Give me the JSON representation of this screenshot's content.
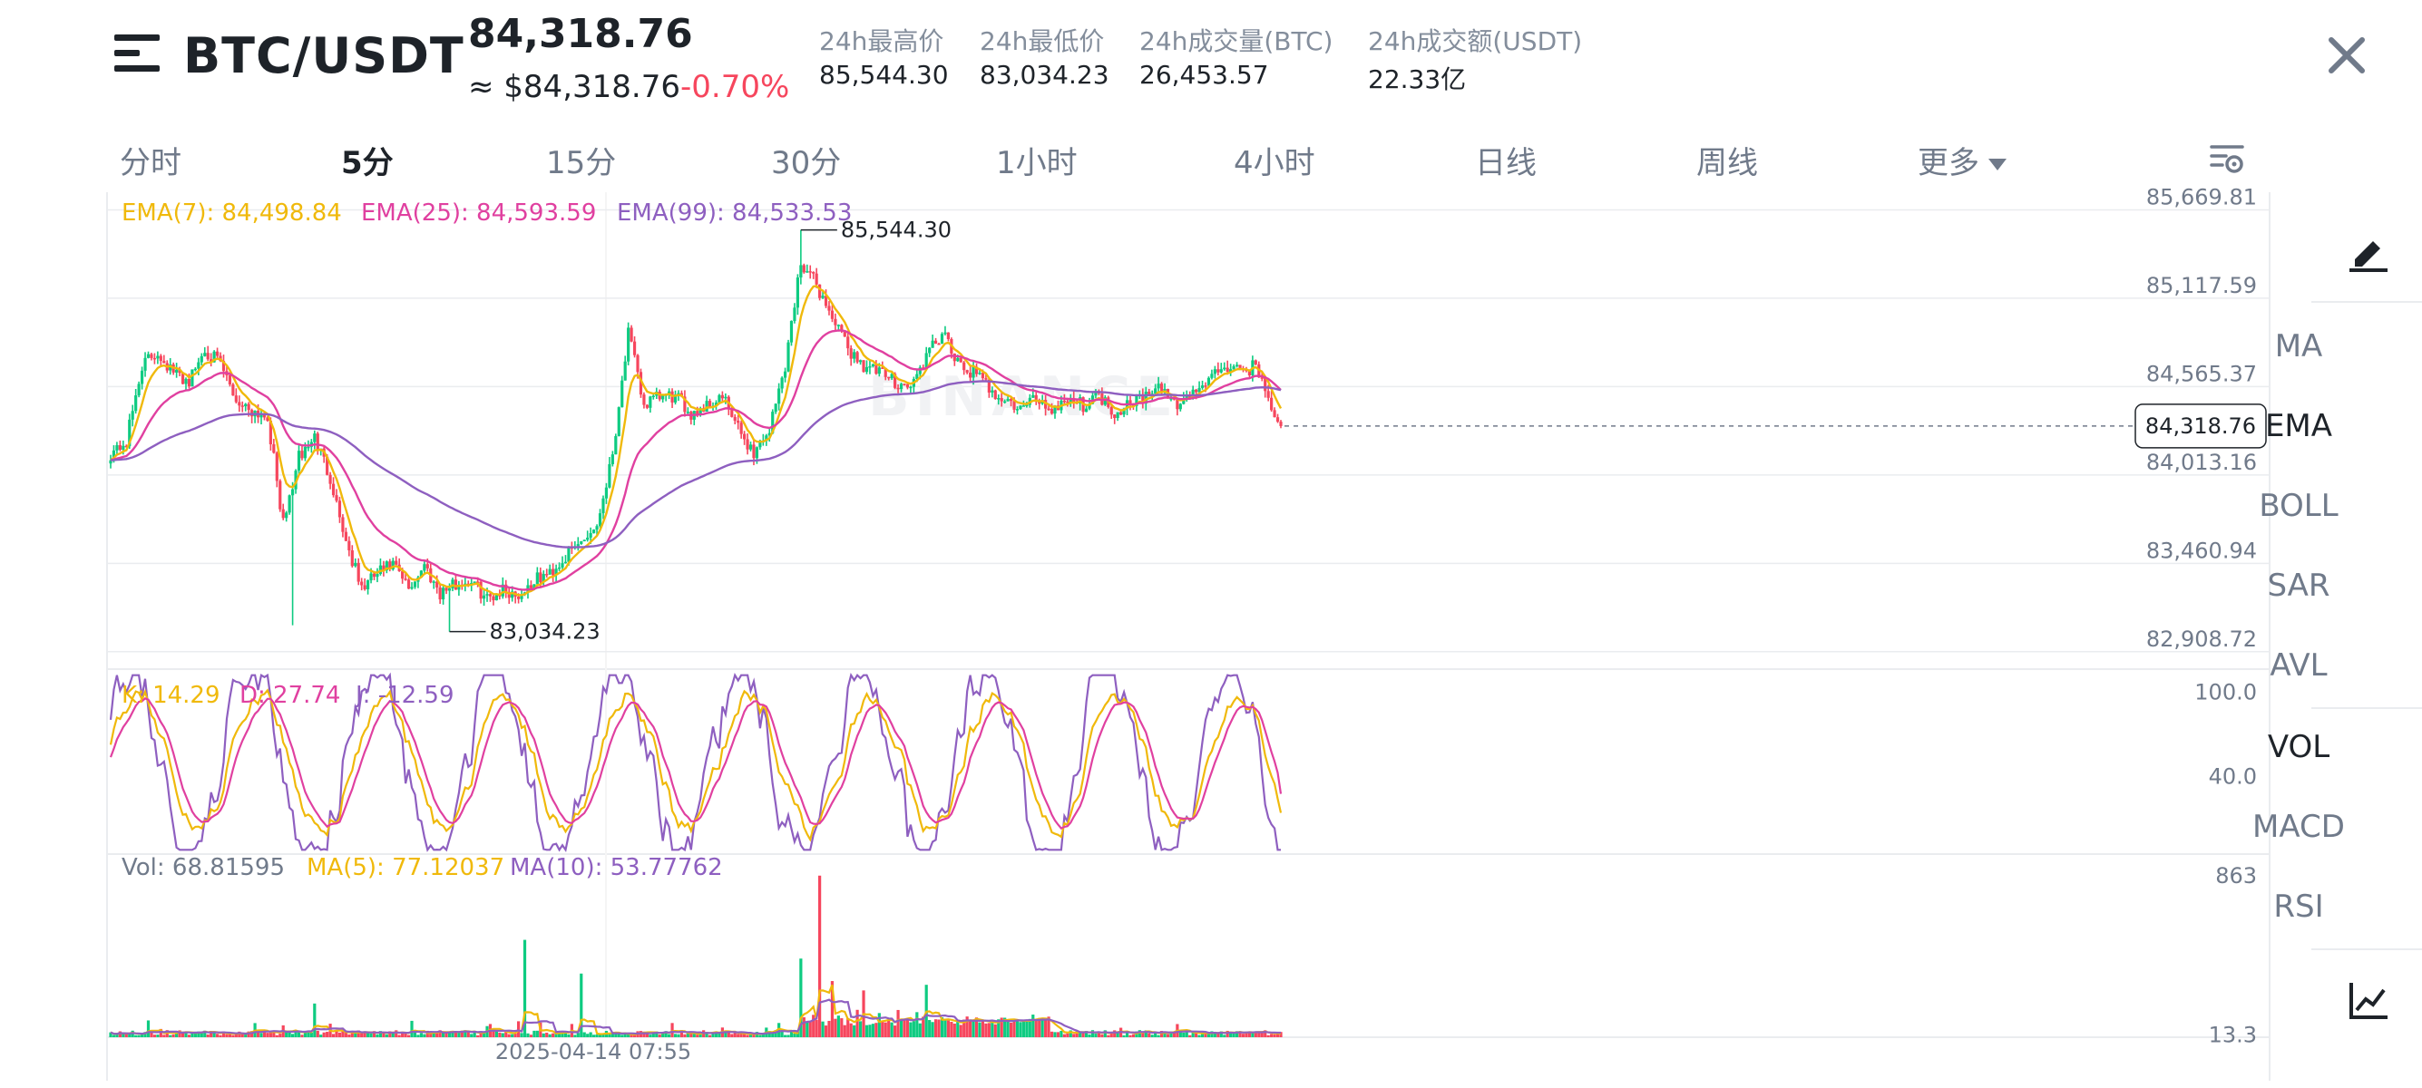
{
  "header": {
    "pair": "BTC/USDT",
    "last_price": "84,318.76",
    "last_price_usd": "≈ $84,318.76",
    "change_pct": "-0.70%",
    "stats": [
      {
        "label": "24h最高价",
        "value": "85,544.30"
      },
      {
        "label": "24h最低价",
        "value": "83,034.23"
      },
      {
        "label": "24h成交量(BTC)",
        "value": "26,453.57"
      },
      {
        "label": "24h成交额(USDT)",
        "value": "22.33亿"
      }
    ]
  },
  "timeframes": [
    {
      "label": "分时",
      "active": false
    },
    {
      "label": "5分",
      "active": true
    },
    {
      "label": "15分",
      "active": false
    },
    {
      "label": "30分",
      "active": false
    },
    {
      "label": "1小时",
      "active": false
    },
    {
      "label": "4小时",
      "active": false
    },
    {
      "label": "日线",
      "active": false
    },
    {
      "label": "周线",
      "active": false
    },
    {
      "label": "更多",
      "active": false
    }
  ],
  "icons": {
    "menu": "menu-icon",
    "close": "close-icon",
    "chart_settings": "chart-settings-icon",
    "draw": "draw-tool-icon",
    "full_chart": "chart-trend-icon"
  },
  "sidebar": {
    "items": [
      {
        "label": "MA",
        "active": false
      },
      {
        "label": "EMA",
        "active": true
      },
      {
        "label": "BOLL",
        "active": false
      },
      {
        "label": "SAR",
        "active": false
      },
      {
        "label": "AVL",
        "active": false
      },
      {
        "label": "VOL",
        "active": true
      },
      {
        "label": "MACD",
        "active": false
      },
      {
        "label": "RSI",
        "active": false
      }
    ]
  },
  "colors": {
    "up": "#0ecb81",
    "down": "#f6465d",
    "ema7": "#f0b90b",
    "ema25": "#e040a0",
    "ema99": "#8e5fc0",
    "text_primary": "#1e2329",
    "text_secondary": "#707a8a",
    "grid": "#eaecef"
  },
  "chart_data": [
    {
      "type": "candlestick",
      "timeframe": "5分",
      "y_axis_ticks": [
        "85,669.81",
        "85,117.59",
        "84,565.37",
        "84,013.16",
        "83,460.94",
        "82,908.72"
      ],
      "ylim": [
        82800,
        85780
      ],
      "current_price_label": "84,318.76",
      "current_price": 84318.76,
      "max_marker": {
        "label": "85,544.30",
        "value": 85544.3
      },
      "min_marker": {
        "label": "83,034.23",
        "value": 83034.23
      },
      "x_tick_label": "2025-04-14 07:55",
      "watermark": "BINANCE",
      "indicators": {
        "ema7": {
          "label": "EMA(7): 84,498.84"
        },
        "ema25": {
          "label": "EMA(25): 84,593.59"
        },
        "ema99": {
          "label": "EMA(99): 84,533.53"
        }
      },
      "close_keypoints": [
        [
          0,
          84150
        ],
        [
          5,
          84220
        ],
        [
          10,
          84700
        ],
        [
          15,
          84780
        ],
        [
          20,
          84650
        ],
        [
          25,
          84600
        ],
        [
          30,
          84800
        ],
        [
          35,
          84700
        ],
        [
          40,
          84480
        ],
        [
          45,
          84420
        ],
        [
          50,
          84380
        ],
        [
          55,
          83700
        ],
        [
          60,
          84120
        ],
        [
          65,
          84250
        ],
        [
          70,
          84000
        ],
        [
          75,
          83600
        ],
        [
          80,
          83300
        ],
        [
          85,
          83400
        ],
        [
          90,
          83450
        ],
        [
          95,
          83300
        ],
        [
          100,
          83450
        ],
        [
          105,
          83280
        ],
        [
          110,
          83330
        ],
        [
          115,
          83350
        ],
        [
          120,
          83240
        ],
        [
          125,
          83300
        ],
        [
          130,
          83260
        ],
        [
          135,
          83350
        ],
        [
          140,
          83400
        ],
        [
          145,
          83500
        ],
        [
          150,
          83600
        ],
        [
          155,
          83700
        ],
        [
          160,
          84150
        ],
        [
          165,
          84900
        ],
        [
          170,
          84450
        ],
        [
          175,
          84500
        ],
        [
          180,
          84500
        ],
        [
          185,
          84400
        ],
        [
          190,
          84450
        ],
        [
          195,
          84500
        ],
        [
          200,
          84300
        ],
        [
          205,
          84150
        ],
        [
          210,
          84300
        ],
        [
          215,
          84700
        ],
        [
          220,
          85350
        ],
        [
          225,
          85200
        ],
        [
          230,
          85000
        ],
        [
          235,
          84800
        ],
        [
          240,
          84700
        ],
        [
          245,
          84650
        ],
        [
          250,
          84600
        ],
        [
          255,
          84560
        ],
        [
          260,
          84750
        ],
        [
          265,
          84900
        ],
        [
          270,
          84700
        ],
        [
          275,
          84650
        ],
        [
          280,
          84560
        ],
        [
          285,
          84480
        ],
        [
          290,
          84420
        ],
        [
          295,
          84500
        ],
        [
          300,
          84420
        ],
        [
          305,
          84500
        ],
        [
          310,
          84450
        ],
        [
          315,
          84520
        ],
        [
          320,
          84400
        ],
        [
          325,
          84480
        ],
        [
          330,
          84500
        ],
        [
          335,
          84550
        ],
        [
          340,
          84450
        ],
        [
          345,
          84530
        ],
        [
          350,
          84600
        ],
        [
          355,
          84700
        ],
        [
          360,
          84650
        ],
        [
          365,
          84700
        ],
        [
          370,
          84450
        ],
        [
          373,
          84318.76
        ]
      ]
    },
    {
      "type": "line",
      "name": "KDJ",
      "labels": {
        "k": "K: 14.29",
        "d": "D: 27.74",
        "j": "J: -12.59"
      },
      "y_axis_ticks": [
        "100.0",
        "40.0"
      ],
      "ylim": [
        -15,
        115
      ]
    },
    {
      "type": "bar",
      "name": "Volume",
      "labels": {
        "vol": "Vol: 68.81595",
        "ma5": "MA(5): 77.12037",
        "ma10": "MA(10): 53.77762"
      },
      "y_axis_ticks": [
        "863",
        "13.3"
      ],
      "ylim": [
        0,
        920
      ],
      "spikes": [
        [
          65,
          180
        ],
        [
          132,
          520
        ],
        [
          150,
          340
        ],
        [
          220,
          420
        ],
        [
          226,
          863
        ],
        [
          230,
          300
        ],
        [
          240,
          250
        ],
        [
          260,
          280
        ]
      ]
    }
  ]
}
